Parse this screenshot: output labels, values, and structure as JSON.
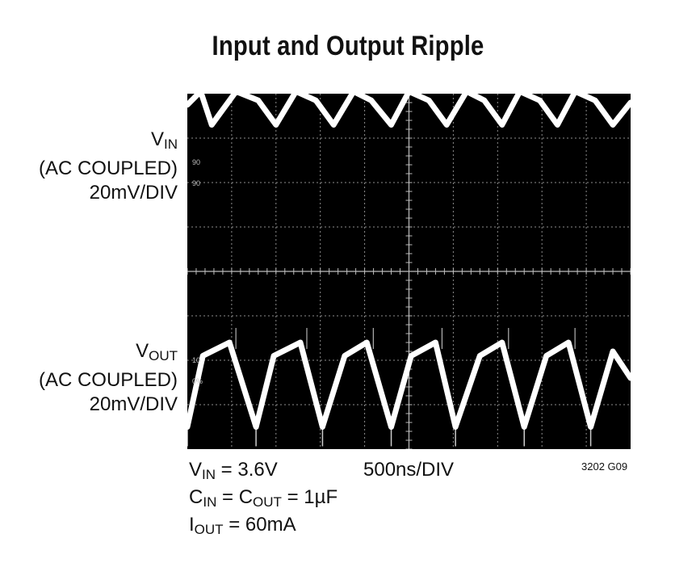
{
  "title": "Input and Output Ripple",
  "vin_label": {
    "main": "V",
    "sub": "IN",
    "coupling": "(AC COUPLED)",
    "scale": "20mV/DIV"
  },
  "vout_label": {
    "main": "V",
    "sub": "OUT",
    "coupling": "(AC COUPLED)",
    "scale": "20mV/DIV"
  },
  "conditions": {
    "vin": {
      "main": "V",
      "sub": "IN",
      "rest": " = 3.6V"
    },
    "cap": {
      "c1": "C",
      "c1sub": "IN",
      "mid": " = C",
      "c2sub": "OUT",
      "rest": " = 1µF"
    },
    "iout": {
      "main": "I",
      "sub": "OUT",
      "rest": " = 60mA"
    }
  },
  "timebase": "500ns/DIV",
  "figure_code": "3202 G09",
  "markers": {
    "vin_top": "90",
    "vin_bottom": "90",
    "vout_top": "10",
    "vout_bottom": "0%"
  },
  "colors": {
    "screen": "#000000",
    "trace": "#ffffff",
    "grid": "#bdbdbd"
  },
  "chart_data": {
    "type": "line",
    "title": "Input and Output Ripple",
    "x_unit": "500ns/DIV",
    "divisions": {
      "x": 10,
      "y": 8
    },
    "xlim": [
      0,
      10
    ],
    "series": [
      {
        "x": [
          0,
          0.3,
          0.55,
          1.1,
          1.6,
          2.0,
          2.45,
          2.9,
          3.3,
          3.75,
          4.15,
          4.6,
          5.0,
          5.45,
          5.85,
          6.3,
          6.7,
          7.1,
          7.5,
          7.95,
          8.35,
          8.75,
          9.2,
          9.6,
          10
        ],
        "y": [
          0.45,
          0.75,
          0.0,
          0.75,
          0.55,
          0.0,
          0.75,
          0.55,
          0.0,
          0.75,
          0.55,
          0.0,
          0.75,
          0.55,
          0.0,
          0.75,
          0.55,
          0.0,
          0.75,
          0.55,
          0.0,
          0.75,
          0.55,
          0.0,
          0.5
        ],
        "y_center_div": 3.3
      },
      {
        "x": [
          0,
          0.35,
          0.95,
          1.55,
          1.95,
          2.55,
          3.05,
          3.55,
          4.05,
          4.6,
          5.05,
          5.6,
          6.05,
          6.6,
          7.1,
          7.6,
          8.1,
          8.6,
          9.1,
          9.6,
          10
        ],
        "y": [
          -0.9,
          0.7,
          1.0,
          -0.9,
          0.7,
          1.0,
          -0.9,
          0.7,
          1.0,
          -0.9,
          0.7,
          1.0,
          -0.9,
          0.7,
          1.0,
          -0.9,
          0.7,
          1.0,
          -0.9,
          0.8,
          0.2
        ],
        "y_center_div": -2.6
      }
    ]
  }
}
